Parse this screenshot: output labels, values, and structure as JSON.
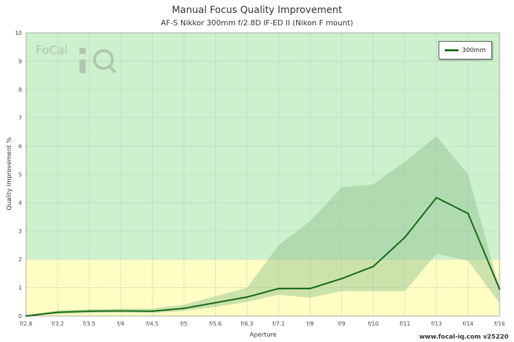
{
  "title": "Manual Focus Quality Improvement",
  "subtitle": "AF-S Nikkor 300mm f/2.8D IF-ED II (Nikon F mount)",
  "footer": "www.focal-iq.com v25220",
  "logo_text": "FoCal iQ",
  "colors": {
    "good_zone": "#cdf0cd",
    "warn_zone": "#fdfdc4",
    "line": "#1a6b1a",
    "band": "#8fc08f"
  },
  "chart_data": {
    "type": "line",
    "title": "Manual Focus Quality Improvement",
    "subtitle": "AF-S Nikkor 300mm f/2.8D IF-ED II (Nikon F mount)",
    "xlabel": "Aperture",
    "ylabel": "Quality Improvement %",
    "categories": [
      "f/2.8",
      "f/3.2",
      "f/3.5",
      "f/4",
      "f/4.5",
      "f/5",
      "f/5.6",
      "f/6.3",
      "f/7.1",
      "f/8",
      "f/9",
      "f/10",
      "f/11",
      "f/13",
      "f/14",
      "f/16"
    ],
    "ylim": [
      0,
      10
    ],
    "yticks": [
      "0",
      "1",
      "2",
      "3",
      "4",
      "5",
      "6",
      "7",
      "8",
      "9",
      "10"
    ],
    "grid": true,
    "legend_position": "top-right",
    "zones": [
      {
        "from": 0,
        "to": 2,
        "color": "#fdfdc4"
      },
      {
        "from": 2,
        "to": 10,
        "color": "#cdf0cd"
      }
    ],
    "series": [
      {
        "name": "300mm",
        "color": "#1a6b1a",
        "values": [
          0.0,
          0.13,
          0.17,
          0.18,
          0.17,
          0.27,
          0.47,
          0.67,
          0.97,
          0.97,
          1.32,
          1.75,
          2.78,
          4.18,
          3.62,
          0.95
        ],
        "band_upper": [
          0.02,
          0.2,
          0.24,
          0.26,
          0.26,
          0.4,
          0.7,
          1.0,
          2.5,
          3.35,
          4.55,
          4.65,
          5.45,
          6.35,
          5.0,
          0.95
        ],
        "band_lower": [
          0.0,
          0.08,
          0.1,
          0.12,
          0.1,
          0.18,
          0.32,
          0.5,
          0.75,
          0.65,
          0.88,
          0.88,
          0.88,
          2.2,
          1.95,
          0.45
        ]
      }
    ]
  }
}
